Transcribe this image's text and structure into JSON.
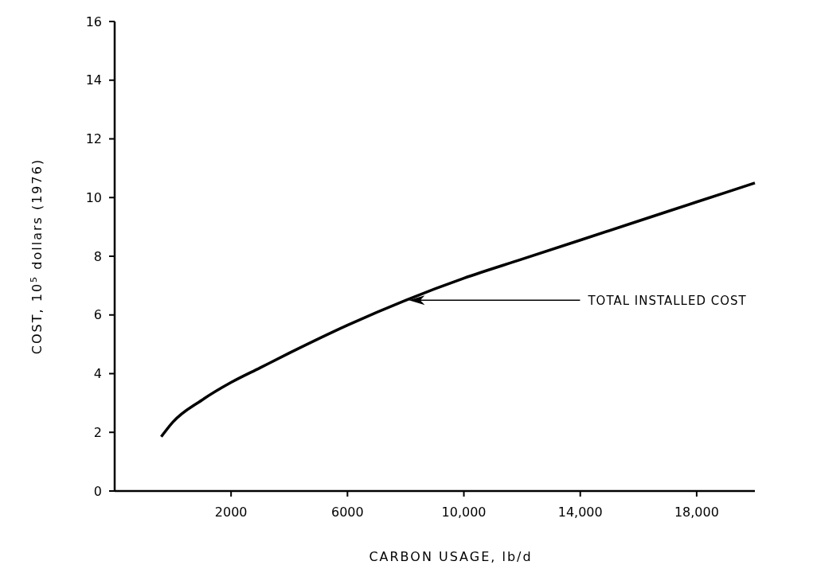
{
  "chart_data": {
    "type": "line",
    "xlabel": "CARBON USAGE, lb/d",
    "ylabel": "COST,  10$^{5}$ dollars (1976)",
    "x": [
      -400,
      0,
      1000,
      2000,
      3000,
      4000,
      6000,
      8000,
      10000,
      12000,
      14000,
      16000,
      18000,
      20000
    ],
    "series": [
      {
        "color": "#000000",
        "values": [
          1.85,
          2.35,
          3.1,
          3.7,
          4.2,
          4.7,
          5.65,
          6.5,
          7.25,
          7.9,
          8.55,
          9.2,
          9.85,
          10.5
        ]
      }
    ],
    "xlim": [
      -2000,
      20000
    ],
    "xticks": [
      {
        "value": 2000,
        "label": "2000"
      },
      {
        "value": 6000,
        "label": "6000"
      },
      {
        "value": 10000,
        "label": "10,000"
      },
      {
        "value": 14000,
        "label": "14,000"
      },
      {
        "value": 18000,
        "label": "18,000"
      }
    ],
    "ylim": [
      0,
      16
    ],
    "yticks": [
      0,
      2,
      4,
      6,
      8,
      10,
      12,
      14,
      16
    ],
    "annotations": [
      "TOTAL INSTALLED COST"
    ],
    "grid": false,
    "marker": "none",
    "line_style": "solid"
  }
}
